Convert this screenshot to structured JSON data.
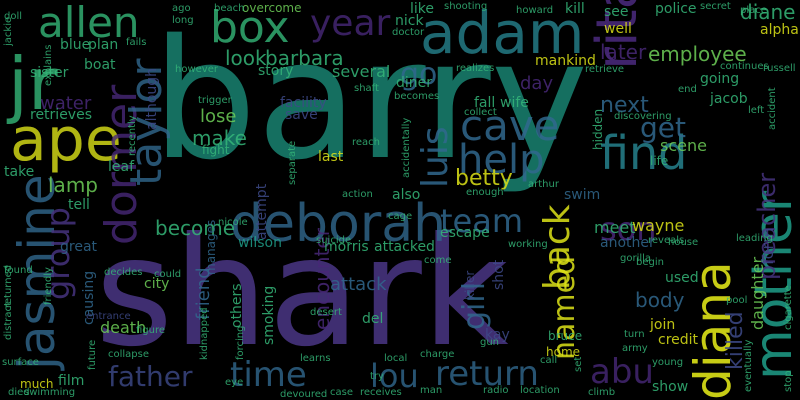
{
  "colors": {
    "background": "#000000",
    "teal": "#1f9e89",
    "green": "#35b779",
    "lime": "#6ece58",
    "yellow": "#dde318",
    "blue": "#3e4a89",
    "navy": "#31688e",
    "cyan": "#26828e",
    "purple": "#482878",
    "indigo": "#46337e"
  },
  "words": [
    {
      "text": "barry",
      "c": "teal"
    },
    {
      "text": "shark",
      "c": "indigo"
    },
    {
      "text": "adam",
      "c": "cyan"
    },
    {
      "text": "ape",
      "c": "yellow"
    },
    {
      "text": "jr",
      "c": "green"
    },
    {
      "text": "allen",
      "c": "green"
    },
    {
      "text": "box",
      "c": "green"
    },
    {
      "text": "rita",
      "c": "purple"
    },
    {
      "text": "deborah",
      "c": "navy"
    },
    {
      "text": "jasmine",
      "c": "navy"
    },
    {
      "text": "dormer",
      "c": "purple"
    },
    {
      "text": "taylor",
      "c": "navy"
    },
    {
      "text": "diana",
      "c": "yellow"
    },
    {
      "text": "mother",
      "c": "teal"
    },
    {
      "text": "find",
      "c": "cyan"
    },
    {
      "text": "cave",
      "c": "navy"
    },
    {
      "text": "help",
      "c": "navy"
    },
    {
      "text": "luis",
      "c": "navy"
    },
    {
      "text": "year",
      "c": "purple"
    },
    {
      "text": "time",
      "c": "navy"
    },
    {
      "text": "father",
      "c": "blue"
    },
    {
      "text": "return",
      "c": "navy"
    },
    {
      "text": "lou",
      "c": "navy"
    },
    {
      "text": "abu",
      "c": "purple"
    },
    {
      "text": "team",
      "c": "navy"
    },
    {
      "text": "back",
      "c": "yellow"
    },
    {
      "text": "named",
      "c": "yellow"
    },
    {
      "text": "girl",
      "c": "navy"
    },
    {
      "text": "group",
      "c": "indigo"
    },
    {
      "text": "son",
      "c": "purple"
    },
    {
      "text": "get",
      "c": "navy"
    },
    {
      "text": "go",
      "c": "navy"
    },
    {
      "text": "preacher",
      "c": "indigo"
    },
    {
      "text": "killed",
      "c": "blue"
    },
    {
      "text": "employee",
      "c": "lime"
    },
    {
      "text": "look",
      "c": "green"
    },
    {
      "text": "barbara",
      "c": "green"
    },
    {
      "text": "next",
      "c": "navy"
    },
    {
      "text": "diane",
      "c": "green"
    },
    {
      "text": "later",
      "c": "purple"
    },
    {
      "text": "betty",
      "c": "yellow"
    },
    {
      "text": "lamp",
      "c": "lime"
    },
    {
      "text": "water",
      "c": "purple"
    },
    {
      "text": "make",
      "c": "green"
    },
    {
      "text": "lose",
      "c": "lime"
    },
    {
      "text": "become",
      "c": "green"
    },
    {
      "text": "attack",
      "c": "navy"
    },
    {
      "text": "encounter",
      "c": "purple"
    },
    {
      "text": "friend",
      "c": "navy"
    },
    {
      "text": "body",
      "c": "navy"
    },
    {
      "text": "daughter",
      "c": "lime"
    },
    {
      "text": "form",
      "c": "blue"
    },
    {
      "text": "scene",
      "c": "lime"
    },
    {
      "text": "meet",
      "c": "green"
    },
    {
      "text": "wayne",
      "c": "yellow"
    },
    {
      "text": "several",
      "c": "green"
    },
    {
      "text": "story",
      "c": "green"
    },
    {
      "text": "plan",
      "c": "green"
    },
    {
      "text": "boat",
      "c": "green"
    },
    {
      "text": "sister",
      "c": "green"
    },
    {
      "text": "blue",
      "c": "green"
    },
    {
      "text": "retrieves",
      "c": "green"
    },
    {
      "text": "day",
      "c": "purple"
    },
    {
      "text": "fall",
      "c": "green"
    },
    {
      "text": "wife",
      "c": "green"
    },
    {
      "text": "going",
      "c": "green"
    },
    {
      "text": "jacob",
      "c": "green"
    },
    {
      "text": "alpha",
      "c": "yellow"
    },
    {
      "text": "well",
      "c": "yellow"
    },
    {
      "text": "mankind",
      "c": "yellow"
    },
    {
      "text": "police",
      "c": "green"
    },
    {
      "text": "see",
      "c": "green"
    },
    {
      "text": "kill",
      "c": "green"
    },
    {
      "text": "like",
      "c": "green"
    },
    {
      "text": "nick",
      "c": "green"
    },
    {
      "text": "diner",
      "c": "green"
    },
    {
      "text": "although",
      "c": "blue"
    },
    {
      "text": "facility",
      "c": "blue"
    },
    {
      "text": "save",
      "c": "blue"
    },
    {
      "text": "last",
      "c": "yellow"
    },
    {
      "text": "attempt",
      "c": "blue"
    },
    {
      "text": "fight",
      "c": "green"
    },
    {
      "text": "overcome",
      "c": "lime"
    },
    {
      "text": "take",
      "c": "green"
    },
    {
      "text": "leaf",
      "c": "green"
    },
    {
      "text": "tell",
      "c": "green"
    },
    {
      "text": "great",
      "c": "navy"
    },
    {
      "text": "causing",
      "c": "navy"
    },
    {
      "text": "death",
      "c": "lime"
    },
    {
      "text": "city",
      "c": "lime"
    },
    {
      "text": "others",
      "c": "green"
    },
    {
      "text": "smoking",
      "c": "green"
    },
    {
      "text": "wilson",
      "c": "teal"
    },
    {
      "text": "morris",
      "c": "green"
    },
    {
      "text": "attacked",
      "c": "green"
    },
    {
      "text": "escape",
      "c": "green"
    },
    {
      "text": "also",
      "c": "green"
    },
    {
      "text": "swim",
      "c": "navy"
    },
    {
      "text": "another",
      "c": "navy"
    },
    {
      "text": "used",
      "c": "green"
    },
    {
      "text": "join",
      "c": "yellow"
    },
    {
      "text": "credit",
      "c": "yellow"
    },
    {
      "text": "show",
      "c": "green"
    },
    {
      "text": "film",
      "c": "green"
    },
    {
      "text": "much",
      "c": "yellow"
    },
    {
      "text": "shot",
      "c": "blue"
    },
    {
      "text": "kay",
      "c": "blue"
    },
    {
      "text": "killer",
      "c": "blue"
    },
    {
      "text": "del",
      "c": "green"
    },
    {
      "text": "bruce",
      "c": "green"
    },
    {
      "text": "home",
      "c": "yellow"
    },
    {
      "text": "manages",
      "c": "navy"
    },
    {
      "text": "hidden",
      "c": "green"
    },
    {
      "text": "life",
      "c": "green"
    },
    {
      "text": "continues",
      "c": "green"
    },
    {
      "text": "surface",
      "c": "green"
    },
    {
      "text": "swimming",
      "c": "green"
    },
    {
      "text": "died",
      "c": "green"
    },
    {
      "text": "radio",
      "c": "green"
    },
    {
      "text": "location",
      "c": "green"
    },
    {
      "text": "man",
      "c": "green"
    },
    {
      "text": "eye",
      "c": "green"
    },
    {
      "text": "action",
      "c": "green"
    },
    {
      "text": "figure",
      "c": "green"
    },
    {
      "text": "charge",
      "c": "green"
    },
    {
      "text": "turn",
      "c": "green"
    },
    {
      "text": "army",
      "c": "green"
    },
    {
      "text": "eventually",
      "c": "green"
    },
    {
      "text": "stop",
      "c": "green"
    },
    {
      "text": "could",
      "c": "green"
    },
    {
      "text": "decides",
      "c": "green"
    },
    {
      "text": "found",
      "c": "green"
    },
    {
      "text": "returned",
      "c": "green"
    },
    {
      "text": "entrance",
      "c": "blue"
    },
    {
      "text": "left",
      "c": "green"
    },
    {
      "text": "end",
      "c": "green"
    },
    {
      "text": "doll",
      "c": "green"
    },
    {
      "text": "reach",
      "c": "green"
    },
    {
      "text": "realizes",
      "c": "green"
    },
    {
      "text": "collect",
      "c": "green"
    },
    {
      "text": "shaft",
      "c": "green"
    },
    {
      "text": "however",
      "c": "green"
    },
    {
      "text": "fails",
      "c": "green"
    },
    {
      "text": "collapse",
      "c": "green"
    },
    {
      "text": "trigger",
      "c": "green"
    },
    {
      "text": "becomes",
      "c": "green"
    },
    {
      "text": "retrieve",
      "c": "green"
    },
    {
      "text": "discovering",
      "c": "green"
    },
    {
      "text": "shooting",
      "c": "green"
    },
    {
      "text": "howard",
      "c": "green"
    },
    {
      "text": "beach",
      "c": "green"
    },
    {
      "text": "secret",
      "c": "green"
    },
    {
      "text": "place",
      "c": "green"
    },
    {
      "text": "russell",
      "c": "green"
    },
    {
      "text": "accident",
      "c": "green"
    },
    {
      "text": "cigarette",
      "c": "green"
    },
    {
      "text": "reveals",
      "c": "green"
    },
    {
      "text": "leading",
      "c": "green"
    },
    {
      "text": "house",
      "c": "green"
    },
    {
      "text": "gorilla",
      "c": "green"
    },
    {
      "text": "begin",
      "c": "green"
    },
    {
      "text": "climb",
      "c": "green"
    },
    {
      "text": "young",
      "c": "green"
    },
    {
      "text": "receives",
      "c": "green"
    },
    {
      "text": "case",
      "c": "green"
    },
    {
      "text": "devoured",
      "c": "green"
    },
    {
      "text": "learns",
      "c": "green"
    },
    {
      "text": "try",
      "c": "green"
    },
    {
      "text": "local",
      "c": "green"
    },
    {
      "text": "gun",
      "c": "green"
    },
    {
      "text": "desert",
      "c": "green"
    },
    {
      "text": "suicide",
      "c": "green"
    },
    {
      "text": "forcing",
      "c": "green"
    },
    {
      "text": "kidnapped",
      "c": "green"
    },
    {
      "text": "future",
      "c": "green"
    },
    {
      "text": "friendly",
      "c": "green"
    },
    {
      "text": "distract",
      "c": "green"
    },
    {
      "text": "nicole",
      "c": "green"
    },
    {
      "text": "separate",
      "c": "green"
    },
    {
      "text": "accidentally",
      "c": "green"
    },
    {
      "text": "doctor",
      "c": "green"
    },
    {
      "text": "explains",
      "c": "green"
    },
    {
      "text": "jackie",
      "c": "green"
    },
    {
      "text": "recently",
      "c": "green"
    },
    {
      "text": "ago",
      "c": "green"
    },
    {
      "text": "long",
      "c": "green"
    },
    {
      "text": "enough",
      "c": "green"
    },
    {
      "text": "arthur",
      "c": "green"
    },
    {
      "text": "cage",
      "c": "green"
    },
    {
      "text": "working",
      "c": "green"
    },
    {
      "text": "call",
      "c": "green"
    },
    {
      "text": "set",
      "c": "green"
    },
    {
      "text": "come",
      "c": "green"
    },
    {
      "text": "pool",
      "c": "green"
    }
  ]
}
